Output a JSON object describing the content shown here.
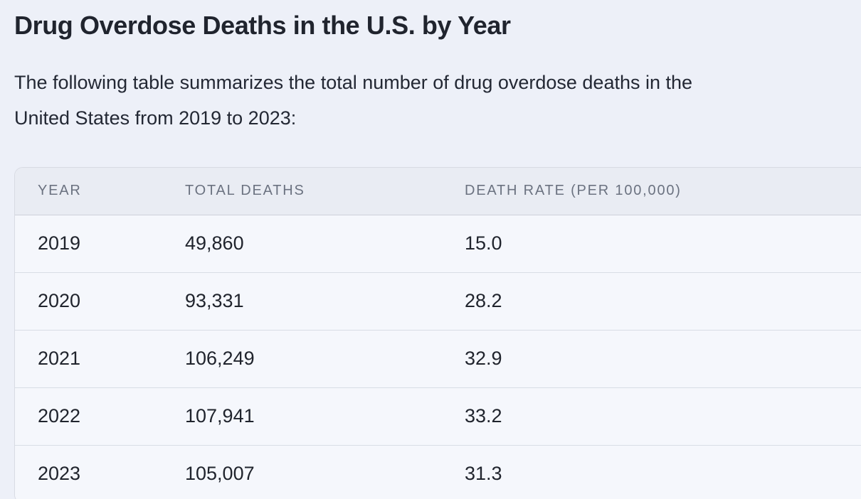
{
  "page": {
    "title": "Drug Overdose Deaths in the U.S. by Year",
    "description": "The following table summarizes the total number of drug overdose deaths in the United States from 2019 to 2023:",
    "description_lines": [
      "The following table summarizes the total number of drug overdose deaths in the",
      "United States from 2019 to 2023:"
    ]
  },
  "table": {
    "columns": [
      "YEAR",
      "TOTAL DEATHS",
      "DEATH RATE (PER 100,000)"
    ],
    "rows": [
      [
        "2019",
        "49,860",
        "15.0"
      ],
      [
        "2020",
        "93,331",
        "28.2"
      ],
      [
        "2021",
        "106,249",
        "32.9"
      ],
      [
        "2022",
        "107,941",
        "33.2"
      ],
      [
        "2023",
        "105,007",
        "31.3"
      ]
    ]
  },
  "colors": {
    "page_background": "#edf0f8",
    "table_header_background": "#e9ecf3",
    "table_row_background": "#f5f7fc",
    "table_border": "#d8dbe3",
    "heading_text": "#20242e",
    "body_text": "#20242d",
    "header_text": "#6b7280"
  }
}
